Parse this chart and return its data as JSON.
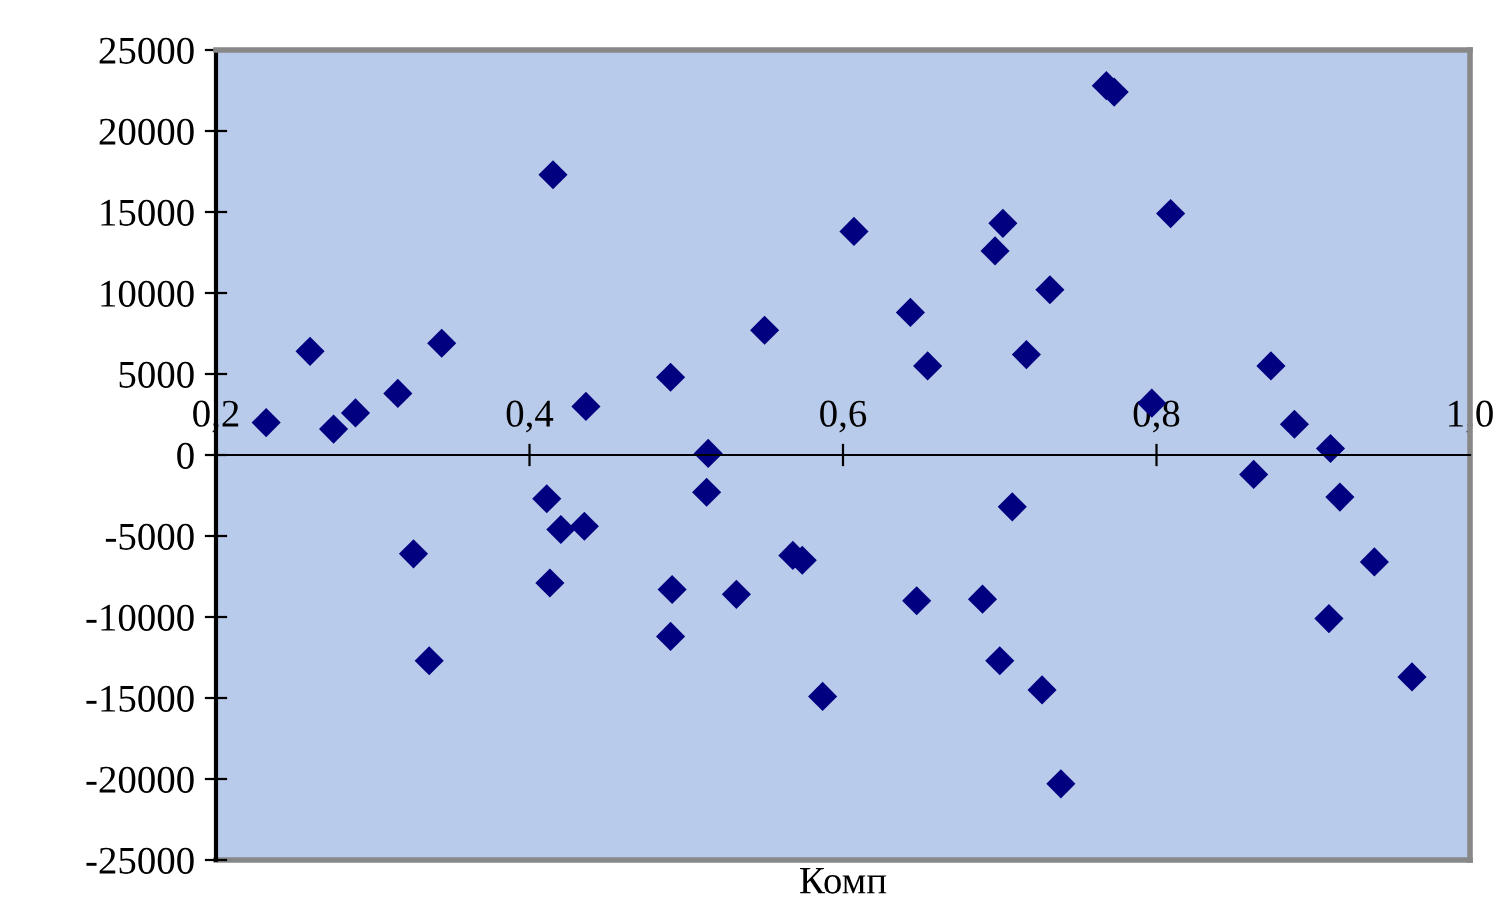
{
  "chart_data": {
    "type": "scatter",
    "xlabel": "Комп",
    "series": [
      {
        "color": "#000080",
        "marker": "diamond",
        "x": [
          0.232,
          0.26,
          0.275,
          0.289,
          0.316,
          0.344,
          0.326,
          0.336,
          0.415,
          0.411,
          0.42,
          0.435,
          0.436,
          0.413,
          0.49,
          0.491,
          0.49,
          0.514,
          0.513,
          0.532,
          0.55,
          0.568,
          0.574,
          0.587,
          0.607,
          0.643,
          0.654,
          0.702,
          0.697,
          0.732,
          0.717,
          0.768,
          0.773,
          0.809,
          0.797,
          0.873,
          0.888,
          0.911,
          0.862,
          0.917,
          0.708,
          0.939,
          0.91,
          0.963,
          0.647,
          0.689,
          0.7,
          0.727,
          0.739
        ],
        "values": [
          2000,
          6400,
          1600,
          2600,
          3800,
          6900,
          -6100,
          -12700,
          17300,
          -2700,
          -4600,
          -4400,
          3000,
          -7900,
          4800,
          -8300,
          -11200,
          100,
          -2300,
          -8600,
          7700,
          -6200,
          -6500,
          -14900,
          13800,
          8800,
          5500,
          14300,
          12600,
          10200,
          6200,
          22800,
          22400,
          14900,
          3200,
          5500,
          1900,
          400,
          -1200,
          -2600,
          -3200,
          -6600,
          -10100,
          -13700,
          -9000,
          -8900,
          -12700,
          -14500,
          -20300
        ]
      }
    ],
    "xlim": [
      0.2,
      1.0
    ],
    "xticks": [
      {
        "value": 0.2,
        "label": "0,2"
      },
      {
        "value": 0.4,
        "label": "0,4"
      },
      {
        "value": 0.6,
        "label": "0,6"
      },
      {
        "value": 0.8,
        "label": "0,8"
      },
      {
        "value": 1.0,
        "label": "1,0"
      }
    ],
    "ylim": [
      -25000,
      25000
    ],
    "yticks": [
      -25000,
      -20000,
      -15000,
      -10000,
      -5000,
      0,
      5000,
      10000,
      15000,
      20000,
      25000
    ],
    "grid": false,
    "legend": false
  }
}
